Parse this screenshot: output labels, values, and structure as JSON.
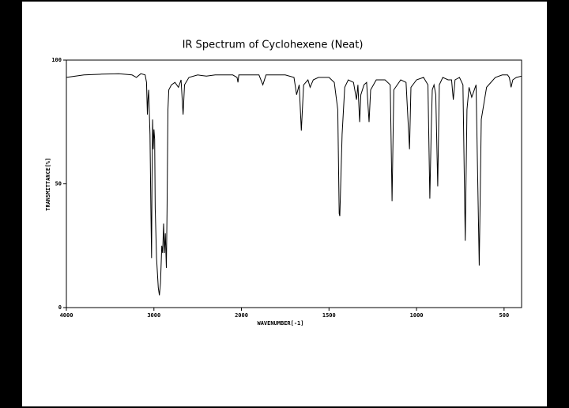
{
  "chart_data": {
    "type": "line",
    "title": "IR Spectrum of Cyclohexene (Neat)",
    "x_label": "WAVENUMBER[-1]",
    "y_label": "TRANSMITTANCE[%]",
    "xlim": [
      4000,
      400
    ],
    "x_scale_change": 2000,
    "xticks": [
      4000,
      3000,
      2000,
      1500,
      1000,
      500
    ],
    "ylim": [
      0,
      100
    ],
    "yticks": [
      0,
      50,
      100
    ],
    "color": "#000000",
    "x": [
      4000,
      3800,
      3600,
      3400,
      3250,
      3200,
      3150,
      3100,
      3085,
      3075,
      3068,
      3060,
      3045,
      3035,
      3027,
      3022,
      3015,
      3008,
      3000,
      2992,
      2985,
      2970,
      2950,
      2937,
      2925,
      2910,
      2900,
      2890,
      2880,
      2870,
      2858,
      2850,
      2840,
      2830,
      2800,
      2760,
      2720,
      2690,
      2667,
      2650,
      2600,
      2500,
      2400,
      2300,
      2200,
      2100,
      2050,
      2040,
      2030,
      2000,
      1900,
      1878,
      1860,
      1750,
      1700,
      1685,
      1670,
      1658,
      1645,
      1620,
      1608,
      1590,
      1560,
      1500,
      1470,
      1450,
      1442,
      1438,
      1425,
      1410,
      1390,
      1360,
      1343,
      1335,
      1325,
      1318,
      1300,
      1285,
      1271,
      1262,
      1230,
      1180,
      1150,
      1140,
      1130,
      1090,
      1060,
      1040,
      1032,
      1000,
      960,
      935,
      924,
      916,
      910,
      900,
      890,
      879,
      870,
      850,
      820,
      800,
      790,
      780,
      755,
      735,
      722,
      712,
      700,
      685,
      660,
      642,
      630,
      600,
      550,
      510,
      480,
      470,
      460,
      450,
      430,
      400
    ],
    "values": [
      93,
      94,
      94.3,
      94.5,
      94,
      93,
      94.5,
      94,
      91,
      78,
      84,
      88,
      70,
      40,
      20,
      50,
      76,
      64,
      72,
      68,
      40,
      20,
      8,
      5,
      10,
      25,
      22,
      34,
      22,
      30,
      16,
      40,
      80,
      88,
      90,
      91,
      89,
      92,
      78,
      90,
      93,
      94,
      93.5,
      94,
      94,
      94,
      93,
      91,
      94,
      94,
      94,
      90,
      94,
      94,
      93,
      86,
      90,
      71.5,
      90,
      92,
      89,
      92,
      93,
      93,
      91,
      80,
      38,
      37,
      70,
      89,
      92,
      91,
      84,
      90,
      75,
      86,
      90,
      91,
      75,
      88,
      92,
      92,
      90,
      43,
      88,
      92,
      91,
      64,
      89,
      92,
      93,
      90,
      44,
      72,
      88,
      90,
      86,
      49,
      90,
      93,
      92,
      92,
      84,
      92,
      93,
      90,
      27,
      80,
      89,
      85,
      90,
      17,
      76,
      89,
      93,
      94,
      94,
      93,
      89,
      92,
      93,
      93.5
    ]
  }
}
